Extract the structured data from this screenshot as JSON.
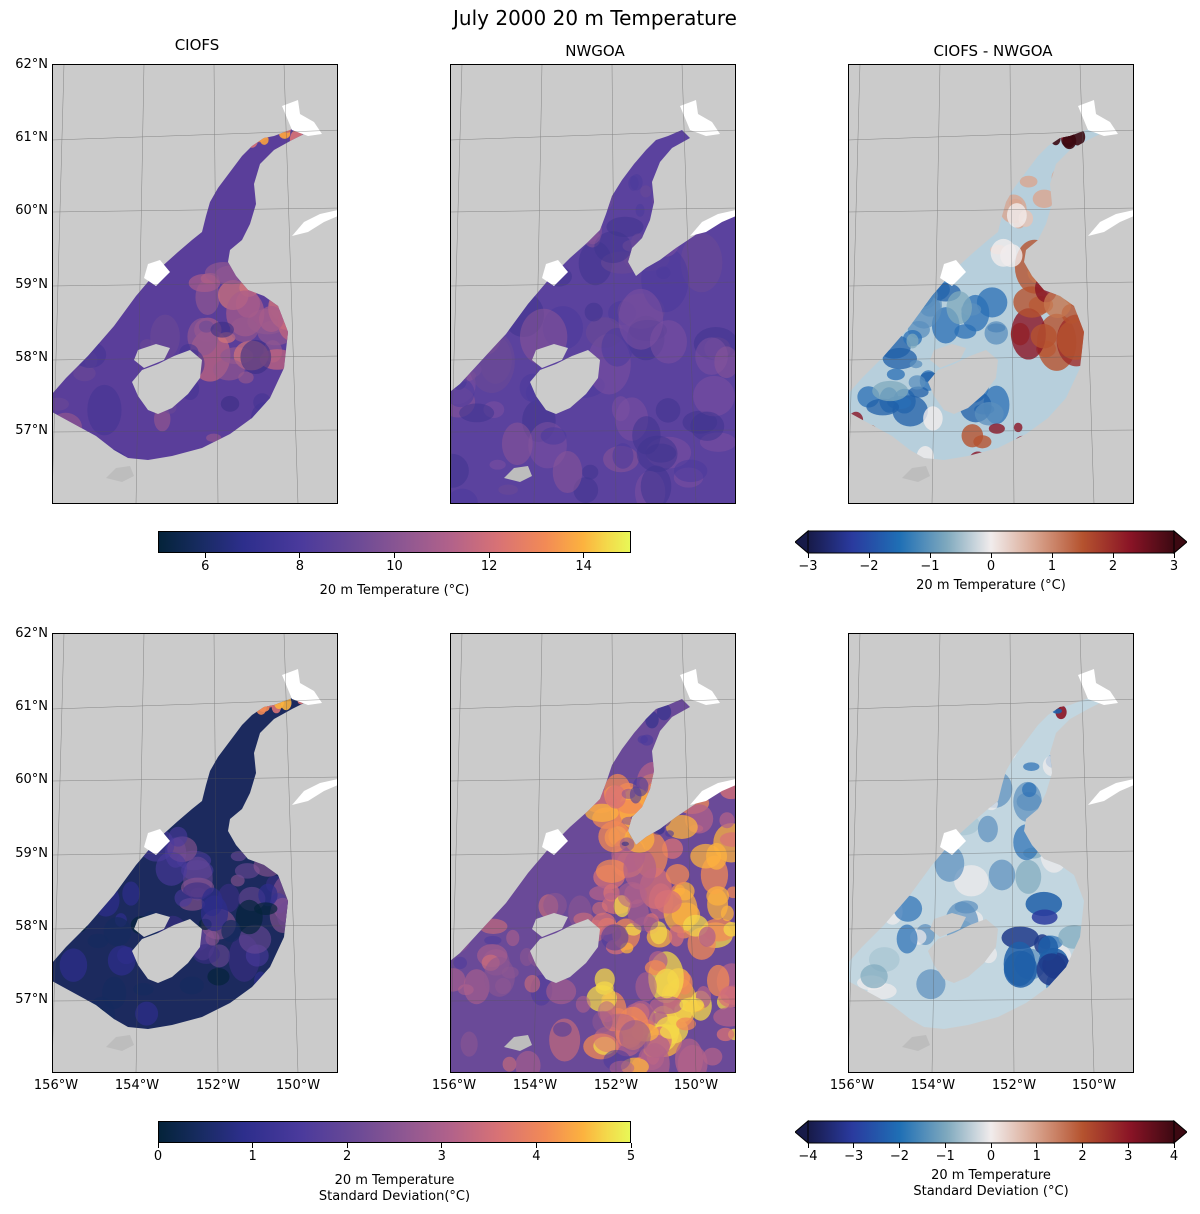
{
  "figure": {
    "title": "July 2000 20 m Temperature"
  },
  "panels": [
    {
      "id": "ciofs-mean",
      "title": "CIOFS",
      "field": "mean",
      "model": "ciofs"
    },
    {
      "id": "nwgoa-mean",
      "title": "NWGOA",
      "field": "mean",
      "model": "nwgoa"
    },
    {
      "id": "diff-mean",
      "title": "CIOFS - NWGOA",
      "field": "mean",
      "model": "diff"
    },
    {
      "id": "ciofs-std",
      "title": "",
      "field": "std",
      "model": "ciofs"
    },
    {
      "id": "nwgoa-std",
      "title": "",
      "field": "std",
      "model": "nwgoa"
    },
    {
      "id": "diff-std",
      "title": "",
      "field": "std",
      "model": "diff"
    }
  ],
  "axes": {
    "lat_labels": [
      "62°N",
      "61°N",
      "60°N",
      "59°N",
      "58°N",
      "57°N"
    ],
    "lon_labels": [
      "156°W",
      "154°W",
      "152°W",
      "150°W"
    ]
  },
  "colorbars": {
    "mean_temp": {
      "label": "20 m Temperature (°C)",
      "ticks": [
        "6",
        "8",
        "10",
        "12",
        "14"
      ],
      "range": [
        5,
        15
      ],
      "colormap": "thermal"
    },
    "mean_diff": {
      "label": "20 m Temperature (°C)",
      "ticks": [
        "−3",
        "−2",
        "−1",
        "0",
        "1",
        "2",
        "3"
      ],
      "range": [
        -3,
        3
      ],
      "colormap": "balance",
      "extend": "both"
    },
    "std_temp": {
      "label_line1": "20 m Temperature",
      "label_line2": "Standard Deviation(°C)",
      "ticks": [
        "0",
        "1",
        "2",
        "3",
        "4",
        "5"
      ],
      "range": [
        0,
        5
      ],
      "colormap": "thermal"
    },
    "std_diff": {
      "label_line1": "20 m Temperature",
      "label_line2": "Standard Deviation (°C)",
      "ticks": [
        "−4",
        "−3",
        "−2",
        "−1",
        "0",
        "1",
        "2",
        "3",
        "4"
      ],
      "range": [
        -4,
        4
      ],
      "colormap": "balance",
      "extend": "both"
    }
  },
  "colors": {
    "land": "#cbcbcb",
    "ocean_mask": "#ffffff",
    "thermal_low": "#04233a",
    "thermal_mid": "#6b4a96",
    "thermal_high": "#e8f857",
    "balance_low": "#171a48",
    "balance_mid": "#f1ecec",
    "balance_high": "#3c0912"
  }
}
